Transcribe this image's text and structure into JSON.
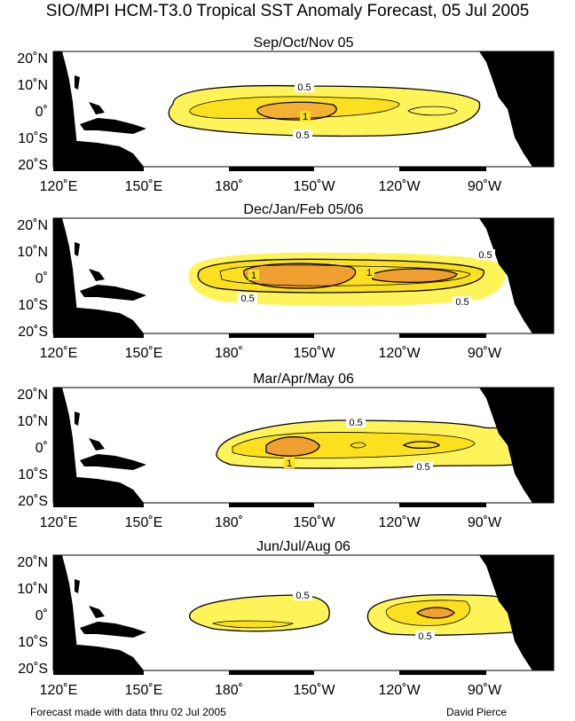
{
  "title": "SIO/MPI HCM-T3.0 Tropical SST Anomaly Forecast, 05 Jul 2005",
  "axes": {
    "lat_labels": [
      "20˚N",
      "10˚N",
      "0˚",
      "10˚S",
      "20˚S"
    ],
    "lon_labels": [
      "120˚E",
      "150˚E",
      "180˚",
      "150˚W",
      "120˚W",
      "90˚W"
    ]
  },
  "colors": {
    "land": "#000000",
    "anomaly_low": "#fff200",
    "anomaly_mid": "#f7c020",
    "anomaly_high": "#e89828"
  },
  "panels": [
    {
      "title": "Sep/Oct/Nov 05",
      "contour_labels": [
        "0.5",
        "1",
        "0.5"
      ]
    },
    {
      "title": "Dec/Jan/Feb 05/06",
      "contour_labels": [
        "0.5",
        "1",
        "1",
        "0.5",
        "0.5"
      ]
    },
    {
      "title": "Mar/Apr/May 06",
      "contour_labels": [
        "0.5",
        "1",
        "0.5"
      ]
    },
    {
      "title": "Jun/Jul/Aug 06",
      "contour_labels": [
        "0.5",
        "0.5"
      ]
    }
  ],
  "footer": {
    "left": "Forecast made with data thru 02 Jul 2005",
    "right": "David Pierce"
  }
}
